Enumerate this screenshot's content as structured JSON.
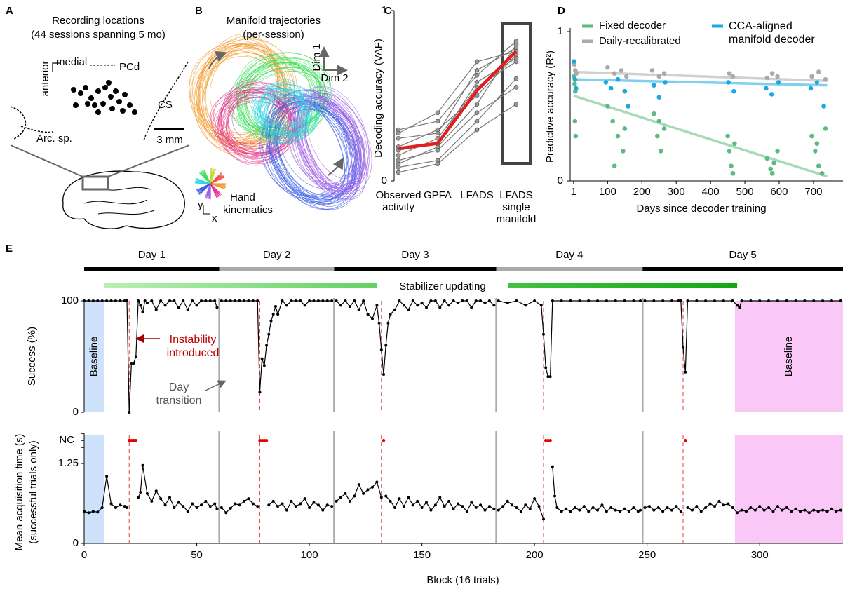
{
  "panel_a": {
    "label": "A",
    "title": [
      "Recording locations",
      "(44 sessions spanning 5 mo)"
    ],
    "medial": "medial",
    "anterior": "anterior",
    "pcd": "PCd",
    "cs": "CS",
    "arc": "Arc. sp.",
    "scale": "3 mm"
  },
  "panel_b": {
    "label": "B",
    "title": [
      "Manifold trajectories",
      "(per-session)"
    ],
    "dim1": "Dim 1",
    "dim2": "Dim 2",
    "hand": [
      "Hand",
      "kinematics"
    ],
    "x": "x",
    "y": "y"
  },
  "chart_data": [
    {
      "type": "line",
      "label": "C",
      "ylabel": "Decoding accuracy (VAF)",
      "categories": [
        "Observed activity",
        "GPFA",
        "LFADS",
        "LFADS single manifold"
      ],
      "ylim": [
        0,
        1
      ],
      "yticks": [
        0,
        1
      ],
      "series": [
        {
          "color": "#777777",
          "values": [
            0.1,
            0.2,
            0.45,
            0.8
          ]
        },
        {
          "color": "#777777",
          "values": [
            0.3,
            0.35,
            0.62,
            0.82
          ]
        },
        {
          "color": "#777777",
          "values": [
            0.15,
            0.25,
            0.55,
            0.7
          ]
        },
        {
          "color": "#777777",
          "values": [
            0.08,
            0.12,
            0.35,
            0.6
          ]
        },
        {
          "color": "#777777",
          "values": [
            0.25,
            0.28,
            0.65,
            0.78
          ]
        },
        {
          "color": "#777777",
          "values": [
            0.2,
            0.3,
            0.5,
            0.74
          ]
        },
        {
          "color": "#777777",
          "values": [
            0.12,
            0.18,
            0.4,
            0.55
          ]
        },
        {
          "color": "#777777",
          "values": [
            0.28,
            0.4,
            0.7,
            0.76
          ]
        },
        {
          "color": "#777777",
          "values": [
            0.18,
            0.22,
            0.58,
            0.72
          ]
        },
        {
          "color": "#777777",
          "values": [
            0.05,
            0.1,
            0.3,
            0.45
          ]
        },
        {
          "color": "#e02020",
          "values": [
            0.19,
            0.22,
            0.53,
            0.76
          ]
        }
      ]
    },
    {
      "type": "scatter",
      "label": "D",
      "ylabel": "Predictive accuracy (R²)",
      "xlabel": "Days since decoder training",
      "xlim": [
        -9,
        786
      ],
      "xticks": [
        1,
        100,
        200,
        300,
        400,
        500,
        600,
        700
      ],
      "ylim": [
        0,
        1
      ],
      "yticks": [
        0,
        1
      ],
      "fit_x": [
        1,
        740
      ],
      "series": [
        {
          "name": "Fixed decoder",
          "color": "#5dbb7e",
          "x": [
            2,
            4,
            6,
            8,
            5,
            7,
            100,
            115,
            130,
            145,
            120,
            150,
            235,
            245,
            255,
            265,
            250,
            450,
            455,
            460,
            465,
            470,
            565,
            575,
            585,
            595,
            580,
            695,
            705,
            715,
            725,
            710,
            735
          ],
          "values": [
            0.7,
            0.65,
            0.6,
            0.72,
            0.4,
            0.3,
            0.5,
            0.4,
            0.3,
            0.2,
            0.1,
            0.35,
            0.45,
            0.3,
            0.2,
            0.35,
            0.4,
            0.3,
            0.2,
            0.1,
            0.05,
            0.25,
            0.15,
            0.08,
            0.12,
            0.2,
            0.05,
            0.3,
            0.2,
            0.1,
            0.05,
            0.25,
            0.35
          ],
          "fit": [
            0.57,
            0.03
          ]
        },
        {
          "name": "Daily-recalibrated",
          "color": "#aaaaaa",
          "x": [
            3,
            6,
            9,
            100,
            120,
            140,
            155,
            230,
            250,
            265,
            455,
            465,
            565,
            580,
            595,
            695,
            715,
            735
          ],
          "values": [
            0.78,
            0.74,
            0.72,
            0.76,
            0.72,
            0.74,
            0.7,
            0.74,
            0.7,
            0.72,
            0.72,
            0.7,
            0.69,
            0.72,
            0.7,
            0.7,
            0.73,
            0.68
          ],
          "fit": [
            0.73,
            0.67
          ]
        },
        {
          "name": "CCA-aligned manifold decoder",
          "color": "#1ca8e3",
          "x": [
            2,
            5,
            8,
            95,
            110,
            130,
            150,
            160,
            235,
            250,
            268,
            452,
            468,
            562,
            578,
            598,
            692,
            710,
            730
          ],
          "values": [
            0.8,
            0.68,
            0.62,
            0.66,
            0.62,
            0.68,
            0.6,
            0.5,
            0.64,
            0.56,
            0.66,
            0.66,
            0.6,
            0.62,
            0.58,
            0.66,
            0.62,
            0.66,
            0.5
          ],
          "fit": [
            0.68,
            0.64
          ]
        }
      ]
    },
    {
      "type": "line",
      "label": "E",
      "ylabel": "Success (%)",
      "xlim": [
        0,
        337
      ],
      "ylim": [
        0,
        100
      ],
      "yticks": [
        0,
        100
      ],
      "days": [
        "Day 1",
        "Day 2",
        "Day 3",
        "Day 4",
        "Day 5"
      ],
      "day_colors": [
        "#000000",
        "#aaaaaa",
        "#000000",
        "#aaaaaa",
        "#000000"
      ],
      "day_transitions": [
        60,
        111,
        183,
        248
      ],
      "instability": [
        20,
        78,
        132,
        204,
        266
      ],
      "stabilizer": {
        "label": "Stabilizer updating",
        "span": [
          9,
          290
        ]
      },
      "baseline": {
        "label": "Baseline",
        "spans": [
          [
            0,
            9
          ],
          [
            289,
            337
          ]
        ],
        "colors": [
          "#cfe2fb",
          "#f9c8f6"
        ],
        "text_colors": [
          "#2a3ec9",
          "#c21cc2"
        ]
      },
      "annotations": {
        "instability": "Instability introduced",
        "transition": "Day transition"
      },
      "x": [
        0,
        2,
        4,
        6,
        8,
        10,
        12,
        14,
        16,
        18,
        19,
        20,
        21,
        22,
        23,
        24,
        25,
        26,
        27,
        28,
        30,
        32,
        34,
        36,
        38,
        40,
        42,
        44,
        46,
        48,
        50,
        52,
        54,
        56,
        58,
        59,
        60,
        61,
        63,
        65,
        67,
        69,
        71,
        73,
        75,
        77,
        78,
        79,
        80,
        81,
        82,
        83,
        84,
        85,
        86,
        88,
        90,
        92,
        94,
        96,
        98,
        100,
        102,
        104,
        106,
        108,
        110,
        111,
        112,
        114,
        116,
        118,
        120,
        122,
        124,
        126,
        128,
        130,
        131,
        132,
        133,
        134,
        135,
        136,
        138,
        140,
        142,
        144,
        146,
        148,
        150,
        152,
        154,
        156,
        158,
        160,
        162,
        164,
        166,
        168,
        170,
        172,
        174,
        176,
        178,
        180,
        182,
        183,
        184,
        188,
        192,
        196,
        200,
        203,
        204,
        205,
        206,
        207,
        208,
        212,
        216,
        220,
        224,
        228,
        232,
        236,
        240,
        244,
        247,
        248,
        249,
        253,
        257,
        261,
        264,
        265,
        266,
        267,
        268,
        272,
        276,
        280,
        284,
        288,
        290,
        291,
        292,
        296,
        300,
        304,
        308,
        312,
        316,
        320,
        324,
        328,
        332,
        336
      ],
      "color": "#000000",
      "values": [
        100,
        100,
        100,
        100,
        100,
        100,
        100,
        100,
        100,
        100,
        100,
        0,
        44,
        44,
        50,
        100,
        96,
        90,
        100,
        98,
        100,
        92,
        100,
        96,
        100,
        100,
        94,
        100,
        92,
        100,
        96,
        100,
        100,
        100,
        100,
        94,
        null,
        100,
        100,
        100,
        100,
        100,
        100,
        100,
        100,
        100,
        18,
        48,
        42,
        60,
        70,
        82,
        88,
        95,
        88,
        100,
        96,
        100,
        100,
        100,
        96,
        100,
        100,
        100,
        100,
        100,
        100,
        null,
        100,
        96,
        100,
        95,
        100,
        92,
        100,
        88,
        84,
        96,
        80,
        56,
        34,
        60,
        80,
        88,
        92,
        100,
        96,
        92,
        100,
        96,
        98,
        94,
        100,
        100,
        94,
        100,
        96,
        100,
        98,
        100,
        100,
        94,
        100,
        100,
        98,
        100,
        96,
        null,
        100,
        98,
        100,
        96,
        100,
        96,
        70,
        40,
        32,
        32,
        100,
        100,
        100,
        100,
        100,
        100,
        100,
        100,
        100,
        100,
        100,
        null,
        100,
        100,
        100,
        100,
        100,
        100,
        58,
        36,
        100,
        100,
        100,
        100,
        100,
        100,
        96,
        94,
        100,
        100,
        100,
        100,
        100,
        100,
        100,
        100,
        100,
        100,
        100,
        100
      ]
    },
    {
      "type": "line",
      "ylabel": [
        "Mean acquisition time (s)",
        "(successful trials only)"
      ],
      "xlabel": "Block (16 trials)",
      "xlim": [
        0,
        337
      ],
      "xticks": [
        0,
        50,
        100,
        150,
        200,
        250,
        300
      ],
      "ylim": [
        0,
        1.7
      ],
      "yticks": [
        0,
        1.25,
        {
          "value": 1.61,
          "label": "NC"
        }
      ],
      "color": "#000000",
      "x": [
        0,
        2,
        4,
        6,
        8,
        10,
        12,
        14,
        16,
        18,
        19,
        20,
        24,
        25,
        26,
        28,
        30,
        32,
        34,
        36,
        38,
        40,
        42,
        44,
        46,
        48,
        50,
        52,
        54,
        56,
        58,
        59,
        60,
        61,
        63,
        65,
        67,
        69,
        71,
        73,
        75,
        77,
        78,
        82,
        84,
        86,
        88,
        90,
        92,
        94,
        96,
        98,
        100,
        102,
        104,
        106,
        108,
        110,
        111,
        112,
        114,
        116,
        118,
        120,
        122,
        124,
        126,
        128,
        130,
        132,
        133,
        134,
        136,
        138,
        140,
        142,
        144,
        146,
        148,
        150,
        152,
        154,
        156,
        158,
        160,
        162,
        164,
        166,
        168,
        170,
        172,
        174,
        176,
        178,
        180,
        182,
        183,
        184,
        186,
        188,
        190,
        192,
        194,
        196,
        198,
        200,
        202,
        204,
        205,
        208,
        209,
        210,
        212,
        214,
        216,
        218,
        220,
        222,
        224,
        226,
        228,
        230,
        232,
        234,
        236,
        238,
        240,
        242,
        244,
        246,
        247,
        248,
        249,
        251,
        253,
        255,
        257,
        259,
        261,
        263,
        265,
        266,
        268,
        270,
        272,
        274,
        276,
        278,
        280,
        282,
        284,
        286,
        288,
        290,
        292,
        294,
        296,
        298,
        300,
        302,
        304,
        306,
        308,
        310,
        312,
        314,
        316,
        318,
        320,
        322,
        324,
        326,
        328,
        330,
        332,
        334,
        336
      ],
      "values": [
        0.5,
        0.48,
        0.5,
        0.49,
        0.56,
        1.05,
        0.62,
        0.56,
        0.6,
        0.58,
        0.56,
        null,
        0.72,
        0.8,
        1.22,
        0.78,
        0.66,
        0.82,
        0.7,
        0.6,
        0.72,
        0.56,
        0.64,
        0.58,
        0.5,
        0.62,
        0.56,
        0.6,
        0.66,
        0.58,
        0.62,
        0.54,
        null,
        0.56,
        0.48,
        0.55,
        0.62,
        0.6,
        0.66,
        0.7,
        0.62,
        0.58,
        null,
        0.6,
        0.66,
        0.58,
        0.62,
        0.52,
        0.66,
        0.58,
        0.62,
        0.7,
        0.56,
        0.64,
        0.6,
        0.52,
        0.6,
        0.58,
        null,
        0.66,
        0.72,
        0.78,
        0.66,
        0.74,
        0.92,
        0.78,
        0.84,
        0.88,
        0.96,
        0.72,
        null,
        0.74,
        0.66,
        0.56,
        0.7,
        0.58,
        0.72,
        0.6,
        0.66,
        0.56,
        0.64,
        0.52,
        0.6,
        0.72,
        0.58,
        0.66,
        0.54,
        0.62,
        0.58,
        0.5,
        0.64,
        0.56,
        0.6,
        0.52,
        0.58,
        0.54,
        null,
        0.52,
        0.58,
        0.66,
        0.6,
        0.56,
        0.5,
        0.6,
        0.54,
        0.7,
        0.58,
        0.38,
        null,
        1.2,
        0.74,
        0.56,
        0.5,
        0.54,
        0.5,
        0.56,
        0.52,
        0.58,
        0.5,
        0.56,
        0.52,
        0.6,
        0.5,
        0.56,
        0.52,
        0.5,
        0.54,
        0.5,
        0.56,
        0.5,
        0.52,
        null,
        0.56,
        0.58,
        0.52,
        0.56,
        0.5,
        0.56,
        0.52,
        0.58,
        0.5,
        null,
        0.56,
        0.52,
        0.58,
        0.5,
        0.56,
        0.62,
        0.58,
        0.66,
        0.6,
        0.62,
        0.56,
        0.48,
        0.52,
        0.5,
        0.56,
        0.52,
        0.58,
        0.52,
        0.56,
        0.5,
        0.58,
        0.52,
        0.56,
        0.5,
        0.54,
        0.5,
        0.52,
        0.48,
        0.52,
        0.5,
        0.52,
        0.5,
        0.54,
        0.5,
        0.52
      ],
      "nc": {
        "color": "#e00000",
        "x": [
          20,
          21,
          22,
          23,
          78,
          79,
          80,
          81,
          133,
          205,
          206,
          207,
          267
        ],
        "values": [
          1.61,
          1.61,
          1.61,
          1.61,
          1.61,
          1.61,
          1.61,
          1.61,
          1.61,
          1.61,
          1.61,
          1.61,
          1.61
        ]
      }
    }
  ]
}
